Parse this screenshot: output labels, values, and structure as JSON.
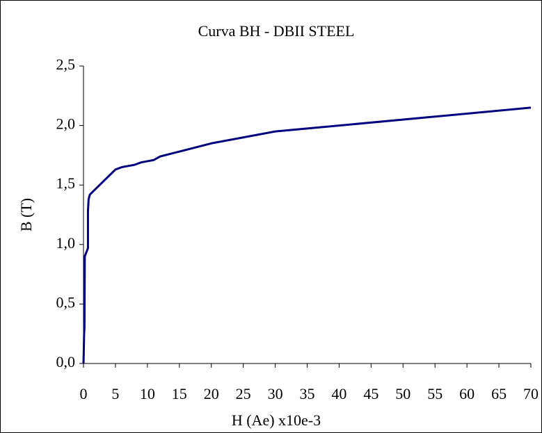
{
  "chart_data": {
    "type": "line",
    "title": "Curva BH - DBII STEEL",
    "xlabel": "H (Ae) x10e-3",
    "ylabel": "B (T)",
    "x": [
      0,
      0.1,
      0.15,
      0.2,
      0.7,
      0.7,
      0.8,
      1,
      5,
      6,
      7,
      8,
      9,
      10,
      11,
      12,
      20,
      30,
      70
    ],
    "series": [
      {
        "name": "B",
        "color": "#000080",
        "values": [
          0,
          0.25,
          0.3,
          0.9,
          0.97,
          1.28,
          1.38,
          1.42,
          1.63,
          1.65,
          1.66,
          1.67,
          1.69,
          1.7,
          1.71,
          1.74,
          1.85,
          1.95,
          2.15
        ]
      }
    ],
    "xlim": [
      0,
      70
    ],
    "xticks": [
      0,
      5,
      10,
      15,
      20,
      25,
      30,
      35,
      40,
      45,
      50,
      55,
      60,
      65,
      70
    ],
    "ylim": [
      0,
      2.5
    ],
    "yticks": [
      {
        "value": 0,
        "label": "0,0"
      },
      {
        "value": 0.5,
        "label": "0,5"
      },
      {
        "value": 1,
        "label": "1,0"
      },
      {
        "value": 1.5,
        "label": "1,5"
      },
      {
        "value": 2,
        "label": "2,0"
      },
      {
        "value": 2.5,
        "label": "2,5"
      }
    ],
    "grid": false
  }
}
